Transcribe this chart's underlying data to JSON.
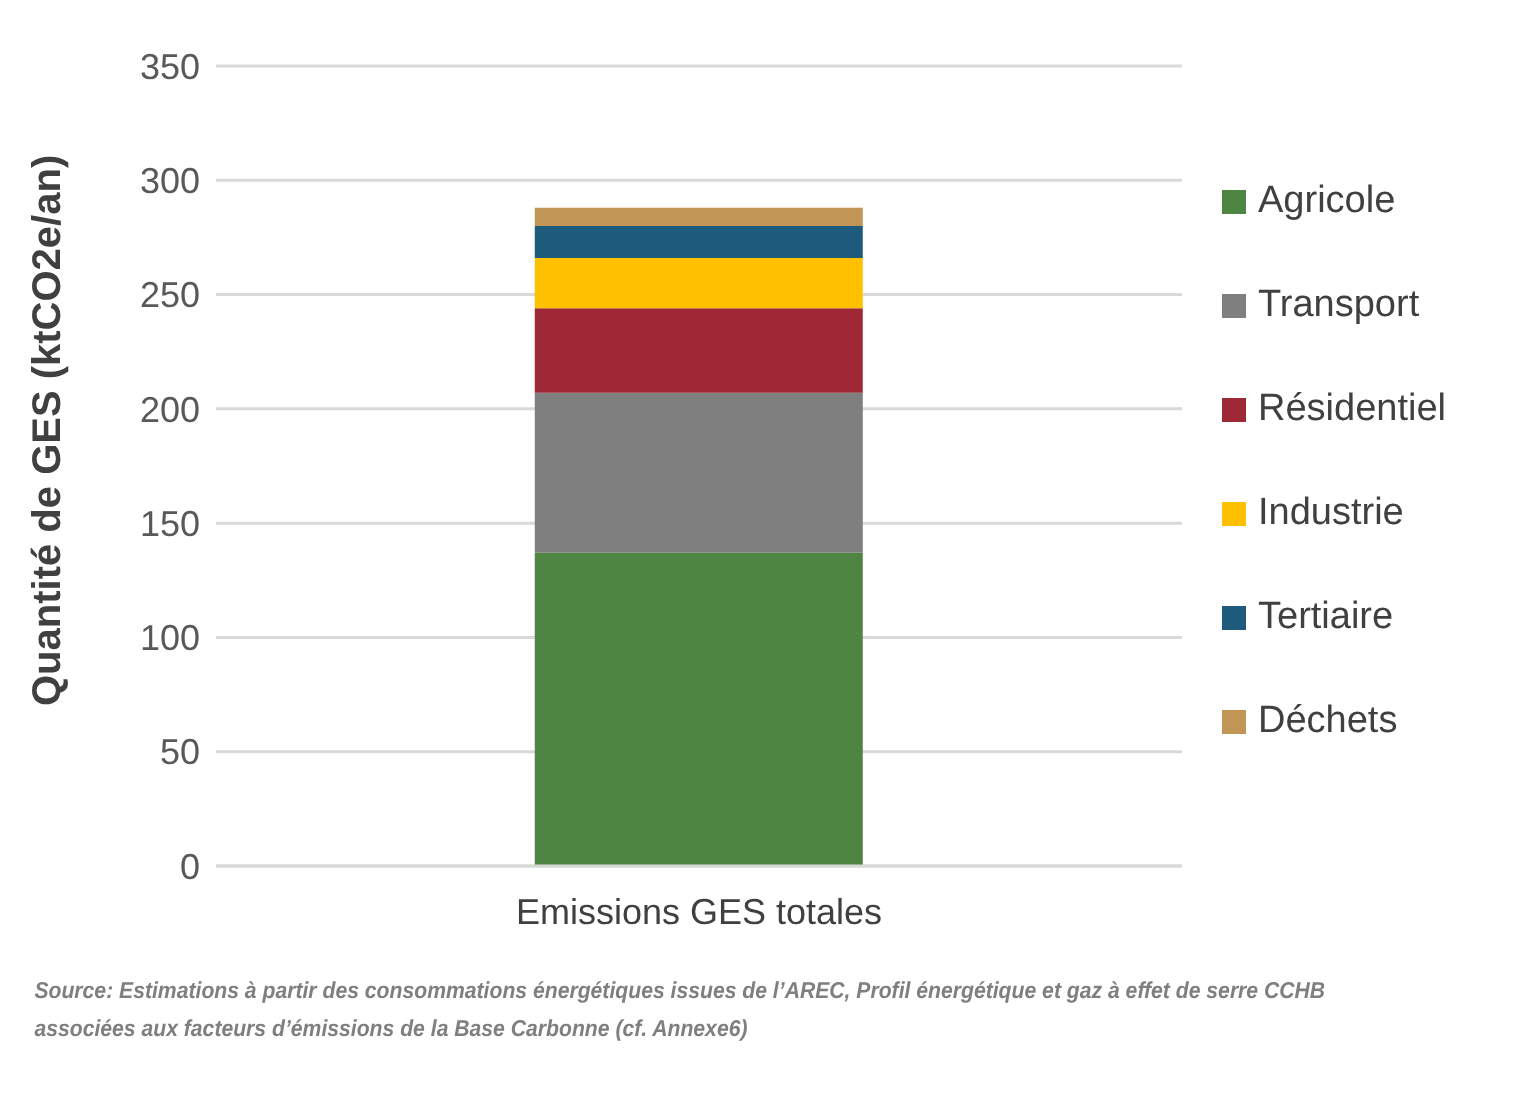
{
  "chart_data": {
    "type": "bar",
    "stacked": true,
    "categories": [
      "Emissions GES totales"
    ],
    "ylabel": "Quantité de GES (ktCO2e/an)",
    "ylim": [
      0,
      350
    ],
    "yticks": [
      0,
      50,
      100,
      150,
      200,
      250,
      300,
      350
    ],
    "grid": "y",
    "legend": "right",
    "series": [
      {
        "name": "Agricole",
        "color": "#4e8542",
        "values": [
          137
        ]
      },
      {
        "name": "Transport",
        "color": "#7f7f7f",
        "values": [
          70
        ]
      },
      {
        "name": "Résidentiel",
        "color": "#9e2836",
        "values": [
          37
        ]
      },
      {
        "name": "Industrie",
        "color": "#ffc000",
        "values": [
          22
        ]
      },
      {
        "name": "Tertiaire",
        "color": "#1e5a7c",
        "values": [
          14
        ]
      },
      {
        "name": "Déchets",
        "color": "#c09555",
        "values": [
          8
        ]
      }
    ],
    "annotations": [
      "Source: Estimations à partir des consommations énergétiques issues de l’AREC, Profil énergétique et gaz à effet de serre CCHB associées aux facteurs d’émissions de la Base Carbonne (cf. Annexe6)"
    ]
  }
}
